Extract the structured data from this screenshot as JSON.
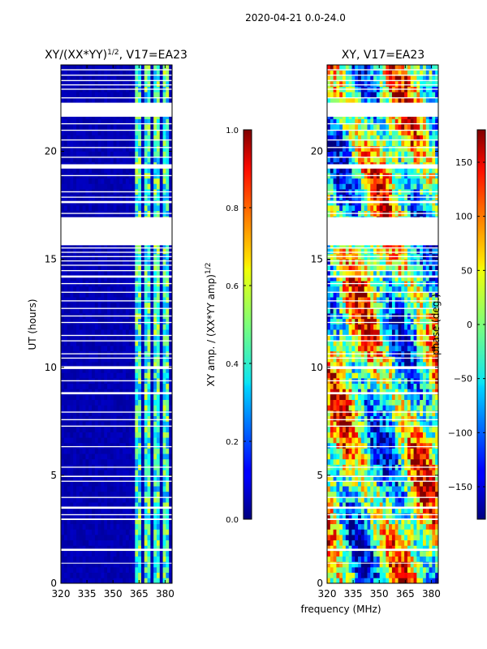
{
  "suptitle": "2020-04-21 0.0-24.0",
  "shared": {
    "xlabel": "frequency (MHz)",
    "x_range": [
      320,
      384
    ],
    "y_range": [
      0,
      24
    ],
    "x_ticks": [
      320,
      335,
      350,
      365,
      380
    ],
    "y_ticks": [
      0,
      5,
      10,
      15,
      20
    ],
    "x_tick_labels": [
      "320",
      "335",
      "350",
      "365",
      "380"
    ]
  },
  "panels": [
    {
      "id": "amp",
      "title_main": "XY/(XX*YY)",
      "title_sup": "1/2",
      "title_tail": ", V17=EA23",
      "ylabel": "UT (hours)",
      "y_tick_labels": [
        "0",
        "5",
        "10",
        "15",
        "20"
      ],
      "colorbar": {
        "label_main": "XY amp. / (XX*YY amp)",
        "label_sup": "1/2",
        "range": [
          0.0,
          1.0
        ],
        "ticks": [
          0.0,
          0.2,
          0.4,
          0.6,
          0.8,
          1.0
        ],
        "tick_labels": [
          "0.0",
          "0.2",
          "0.4",
          "0.6",
          "0.8",
          "1.0"
        ]
      }
    },
    {
      "id": "phase",
      "title_main": "XY, V17=EA23",
      "ylabel": "",
      "y_tick_labels": [
        "0",
        "5",
        "10",
        "15",
        "20"
      ],
      "colorbar": {
        "label_main": "phase (deg.)",
        "range": [
          -180,
          180
        ],
        "ticks": [
          -150,
          -100,
          -50,
          0,
          50,
          100,
          150
        ],
        "tick_labels": [
          "−150",
          "−100",
          "−50",
          "0",
          "50",
          "100",
          "150"
        ]
      }
    }
  ],
  "chart_data": [
    {
      "type": "heatmap",
      "title": "XY/(XX*YY)^1/2, V17=EA23",
      "xlabel": "",
      "ylabel": "UT (hours)",
      "x_range": [
        320,
        384
      ],
      "y_range": [
        0,
        24
      ],
      "value_range": [
        0.0,
        1.0
      ],
      "colormap": "jet",
      "background_value": 0.05,
      "bright_bands_mhz": [
        [
          363,
          367
        ],
        [
          368,
          371
        ],
        [
          373,
          377
        ],
        [
          379,
          383
        ]
      ],
      "bright_band_value_range": [
        0.25,
        0.6
      ],
      "flagged_hours": [
        [
          0.92,
          0.95
        ],
        [
          1.5,
          1.6
        ],
        [
          2.93,
          3.0
        ],
        [
          3.15,
          3.2
        ],
        [
          3.45,
          3.55
        ],
        [
          3.95,
          4.0
        ],
        [
          4.7,
          4.75
        ],
        [
          4.92,
          4.98
        ],
        [
          5.35,
          5.4
        ],
        [
          6.3,
          6.35
        ],
        [
          7.25,
          7.3
        ],
        [
          7.55,
          7.6
        ],
        [
          7.9,
          7.95
        ],
        [
          8.75,
          8.85
        ],
        [
          9.35,
          9.4
        ],
        [
          9.92,
          10.05
        ],
        [
          10.4,
          10.45
        ],
        [
          10.6,
          10.65
        ],
        [
          11.2,
          11.25
        ],
        [
          11.45,
          11.5
        ],
        [
          12.05,
          12.1
        ],
        [
          12.35,
          12.4
        ],
        [
          12.7,
          12.75
        ],
        [
          13.05,
          13.1
        ],
        [
          13.45,
          13.5
        ],
        [
          13.85,
          13.9
        ],
        [
          14.15,
          14.25
        ],
        [
          14.45,
          14.5
        ],
        [
          14.7,
          14.75
        ],
        [
          14.9,
          14.95
        ],
        [
          15.1,
          15.15
        ],
        [
          15.3,
          15.35
        ],
        [
          15.5,
          15.55
        ],
        [
          15.65,
          16.95
        ],
        [
          17.1,
          17.15
        ],
        [
          17.6,
          17.7
        ],
        [
          17.85,
          17.9
        ],
        [
          18.1,
          18.15
        ],
        [
          18.85,
          18.9
        ],
        [
          19.2,
          19.4
        ],
        [
          19.7,
          19.75
        ],
        [
          20.15,
          20.2
        ],
        [
          20.5,
          20.55
        ],
        [
          20.95,
          21.0
        ],
        [
          21.25,
          21.3
        ],
        [
          21.6,
          22.25
        ],
        [
          22.45,
          22.5
        ],
        [
          22.85,
          22.9
        ],
        [
          23.05,
          23.1
        ],
        [
          23.25,
          23.3
        ],
        [
          23.5,
          23.55
        ],
        [
          23.75,
          23.8
        ]
      ]
    },
    {
      "type": "heatmap",
      "title": "XY, V17=EA23",
      "xlabel": "frequency (MHz)",
      "ylabel": "",
      "x_range": [
        320,
        384
      ],
      "y_range": [
        0,
        24
      ],
      "value_range": [
        -180,
        180
      ],
      "colormap": "jet",
      "value_distribution": "mixed phase (deg.) across full range",
      "flagged_hours": [
        [
          0.92,
          0.95
        ],
        [
          1.5,
          1.6
        ],
        [
          2.93,
          3.0
        ],
        [
          3.15,
          3.2
        ],
        [
          3.45,
          3.55
        ],
        [
          3.95,
          4.0
        ],
        [
          4.7,
          4.75
        ],
        [
          4.92,
          4.98
        ],
        [
          5.35,
          5.4
        ],
        [
          6.3,
          6.35
        ],
        [
          7.25,
          7.3
        ],
        [
          7.55,
          7.6
        ],
        [
          7.9,
          7.95
        ],
        [
          8.75,
          8.85
        ],
        [
          9.35,
          9.4
        ],
        [
          9.92,
          10.05
        ],
        [
          10.4,
          10.45
        ],
        [
          10.6,
          10.65
        ],
        [
          11.2,
          11.25
        ],
        [
          11.45,
          11.5
        ],
        [
          12.05,
          12.1
        ],
        [
          12.35,
          12.4
        ],
        [
          12.7,
          12.75
        ],
        [
          13.05,
          13.1
        ],
        [
          13.45,
          13.5
        ],
        [
          13.85,
          13.9
        ],
        [
          14.15,
          14.25
        ],
        [
          14.45,
          14.5
        ],
        [
          14.7,
          14.75
        ],
        [
          14.9,
          14.95
        ],
        [
          15.1,
          15.15
        ],
        [
          15.3,
          15.35
        ],
        [
          15.5,
          15.55
        ],
        [
          15.65,
          16.95
        ],
        [
          17.1,
          17.15
        ],
        [
          17.6,
          17.7
        ],
        [
          17.85,
          17.9
        ],
        [
          18.1,
          18.15
        ],
        [
          18.85,
          18.9
        ],
        [
          19.2,
          19.4
        ],
        [
          19.7,
          19.75
        ],
        [
          20.15,
          20.2
        ],
        [
          20.5,
          20.55
        ],
        [
          20.95,
          21.0
        ],
        [
          21.25,
          21.3
        ],
        [
          21.6,
          22.25
        ],
        [
          22.45,
          22.5
        ],
        [
          22.85,
          22.9
        ],
        [
          23.05,
          23.1
        ],
        [
          23.25,
          23.3
        ],
        [
          23.5,
          23.55
        ],
        [
          23.75,
          23.8
        ]
      ]
    }
  ]
}
